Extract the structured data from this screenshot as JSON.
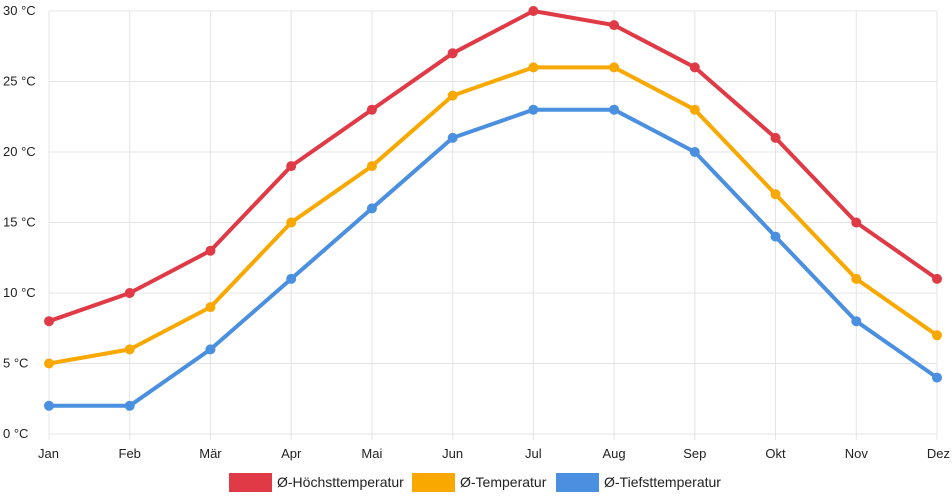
{
  "chart_data": {
    "type": "line",
    "categories": [
      "Jan",
      "Feb",
      "Mär",
      "Apr",
      "Mai",
      "Jun",
      "Jul",
      "Aug",
      "Sep",
      "Okt",
      "Nov",
      "Dez"
    ],
    "y_unit_suffix": " °C",
    "ylim": [
      0,
      30
    ],
    "y_ticks": [
      0,
      5,
      10,
      15,
      20,
      25,
      30
    ],
    "y_tick_labels": [
      "0 °C",
      "5 °C",
      "10 °C",
      "15 °C",
      "20 °C",
      "25 °C",
      "30 °C"
    ],
    "grid": true,
    "legend_position": "bottom-center",
    "series": [
      {
        "name": "Ø-Höchsttemperatur",
        "color": "#e03a46",
        "values": [
          8,
          10,
          13,
          19,
          23,
          27,
          30,
          29,
          26,
          21,
          15,
          11
        ]
      },
      {
        "name": "Ø-Temperatur",
        "color": "#f9a800",
        "values": [
          5,
          6,
          9,
          15,
          19,
          24,
          26,
          26,
          23,
          17,
          11,
          7
        ]
      },
      {
        "name": "Ø-Tiefsttemperatur",
        "color": "#4a8fe0",
        "values": [
          2,
          2,
          6,
          11,
          16,
          21,
          23,
          23,
          20,
          14,
          8,
          4
        ]
      }
    ]
  }
}
